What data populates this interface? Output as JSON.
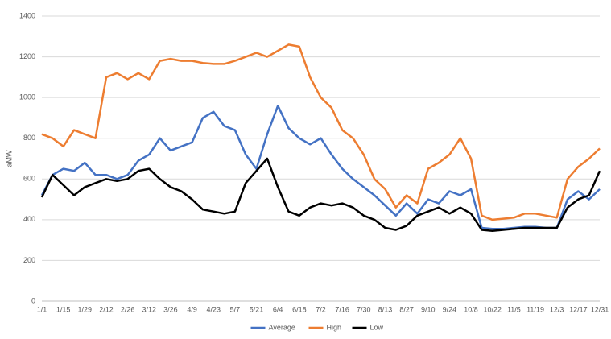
{
  "chart_data": {
    "type": "line",
    "y_label": "aMW",
    "categories": [
      "1/1",
      null,
      "1/15",
      null,
      "1/29",
      null,
      "2/12",
      null,
      "2/26",
      null,
      "3/12",
      null,
      "3/26",
      null,
      "4/9",
      null,
      "4/23",
      null,
      "5/7",
      null,
      "5/21",
      null,
      "6/4",
      null,
      "6/18",
      null,
      "7/2",
      null,
      "7/16",
      null,
      "7/30",
      null,
      "8/13",
      null,
      "8/27",
      null,
      "9/10",
      null,
      "9/24",
      null,
      "10/8",
      null,
      "10/22",
      null,
      "11/5",
      null,
      "11/19",
      null,
      "12/3",
      null,
      "12/17",
      null,
      "12/31"
    ],
    "series": [
      {
        "name": "Average",
        "color": "#4472c4",
        "values": [
          520,
          620,
          650,
          640,
          680,
          620,
          620,
          600,
          620,
          690,
          720,
          800,
          740,
          760,
          780,
          900,
          930,
          860,
          840,
          720,
          650,
          820,
          960,
          850,
          800,
          770,
          800,
          720,
          650,
          600,
          560,
          520,
          470,
          420,
          480,
          430,
          500,
          480,
          540,
          520,
          550,
          360,
          355,
          355,
          360,
          365,
          365,
          360,
          360,
          500,
          540,
          500,
          550
        ]
      },
      {
        "name": "High",
        "color": "#ed7d31",
        "values": [
          820,
          800,
          760,
          840,
          820,
          800,
          1100,
          1120,
          1090,
          1120,
          1090,
          1180,
          1190,
          1180,
          1180,
          1170,
          1165,
          1165,
          1180,
          1200,
          1220,
          1200,
          1230,
          1260,
          1250,
          1100,
          1000,
          950,
          840,
          800,
          720,
          600,
          550,
          460,
          520,
          480,
          650,
          680,
          720,
          800,
          700,
          420,
          400,
          405,
          410,
          430,
          430,
          420,
          410,
          600,
          660,
          700,
          750
        ]
      },
      {
        "name": "Low",
        "color": "#000000",
        "values": [
          510,
          620,
          570,
          520,
          560,
          580,
          600,
          590,
          600,
          640,
          650,
          600,
          560,
          540,
          500,
          450,
          440,
          430,
          440,
          580,
          640,
          700,
          560,
          440,
          420,
          460,
          480,
          470,
          480,
          460,
          420,
          400,
          360,
          350,
          370,
          420,
          440,
          460,
          430,
          460,
          430,
          350,
          345,
          350,
          355,
          360,
          360,
          360,
          360,
          460,
          500,
          520,
          640
        ]
      }
    ],
    "ylim": [
      0,
      1400
    ],
    "yticks": [
      0,
      200,
      400,
      600,
      800,
      1000,
      1200,
      1400
    ],
    "grid": true,
    "legend": "bottom"
  }
}
